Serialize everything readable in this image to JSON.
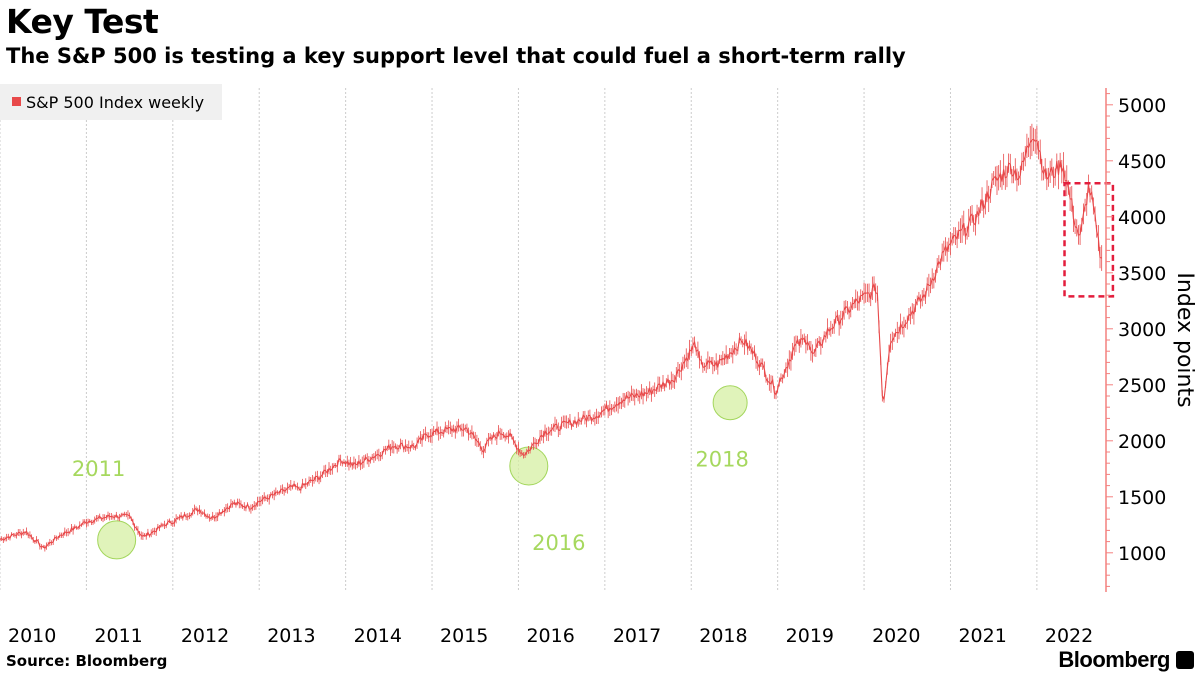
{
  "header": {
    "title": "Key Test",
    "subtitle": "The S&P 500 is testing a key support level that could fuel a short-term rally"
  },
  "footer": {
    "source": "Source: Bloomberg",
    "brand": "Bloomberg"
  },
  "colors": {
    "series": "#e8494a",
    "axis": "#f4807f",
    "highlight_fill": "#d6efa3",
    "highlight_stroke": "#a3d65c",
    "annotation_text": "#a6d85e",
    "box": "#e31d3c",
    "grid": "#cccccc"
  },
  "icons": [
    "bloomberg-logo-icon"
  ],
  "chart_data": {
    "type": "line",
    "title": "Key Test",
    "subtitle": "The S&P 500 is testing a key support level that could fuel a short-term rally",
    "ylabel": "Index points",
    "xlabel": "",
    "x_range": [
      2010.0,
      2022.8
    ],
    "ylim": [
      650,
      5150
    ],
    "yticks": [
      1000,
      1500,
      2000,
      2500,
      3000,
      3500,
      4000,
      4500,
      5000
    ],
    "ytick_labels": [
      "1000",
      "1500",
      "2000",
      "2500",
      "3000",
      "3500",
      "4000",
      "4500",
      "5000"
    ],
    "xticks": [
      2010,
      2011,
      2012,
      2013,
      2014,
      2015,
      2016,
      2017,
      2018,
      2019,
      2020,
      2021,
      2022
    ],
    "xtick_labels": [
      "2010",
      "2011",
      "2012",
      "2013",
      "2014",
      "2015",
      "2016",
      "2017",
      "2018",
      "2019",
      "2020",
      "2021",
      "2022"
    ],
    "grid": true,
    "legend_position": "top-left",
    "series": [
      {
        "name": "S&P 500 Index weekly",
        "x": [
          2010.0,
          2010.3,
          2010.45,
          2010.5,
          2010.7,
          2010.9,
          2011.0,
          2011.3,
          2011.5,
          2011.65,
          2011.8,
          2011.9,
          2012.0,
          2012.3,
          2012.45,
          2012.7,
          2012.9,
          2013.0,
          2013.4,
          2013.45,
          2013.7,
          2013.95,
          2014.1,
          2014.4,
          2014.55,
          2014.8,
          2014.95,
          2015.2,
          2015.4,
          2015.6,
          2015.65,
          2015.8,
          2015.9,
          2016.05,
          2016.1,
          2016.3,
          2016.6,
          2016.9,
          2017.2,
          2017.5,
          2017.8,
          2018.05,
          2018.1,
          2018.3,
          2018.6,
          2018.75,
          2018.98,
          2019.2,
          2019.35,
          2019.4,
          2019.6,
          2019.9,
          2020.1,
          2020.15,
          2020.22,
          2020.3,
          2020.5,
          2020.7,
          2020.9,
          2021.0,
          2021.3,
          2021.5,
          2021.7,
          2021.8,
          2021.95,
          2022.0,
          2022.1,
          2022.2,
          2022.3,
          2022.45,
          2022.5,
          2022.6,
          2022.65,
          2022.7,
          2022.75
        ],
        "values": [
          1120,
          1190,
          1080,
          1040,
          1160,
          1230,
          1280,
          1330,
          1320,
          1140,
          1200,
          1250,
          1280,
          1390,
          1310,
          1440,
          1410,
          1460,
          1590,
          1570,
          1680,
          1830,
          1780,
          1890,
          1960,
          1950,
          2060,
          2100,
          2110,
          1920,
          1990,
          2080,
          2040,
          1880,
          1900,
          2080,
          2160,
          2230,
          2370,
          2430,
          2560,
          2870,
          2680,
          2680,
          2900,
          2750,
          2450,
          2840,
          2920,
          2750,
          3000,
          3230,
          3330,
          3380,
          2300,
          2900,
          3100,
          3300,
          3640,
          3750,
          4000,
          4300,
          4450,
          4360,
          4770,
          4700,
          4350,
          4400,
          4480,
          3930,
          3800,
          4280,
          4100,
          3800,
          3600
        ]
      }
    ],
    "annotations": [
      {
        "label": "2011",
        "x": 2011.35,
        "y": 1115
      },
      {
        "label": "2016",
        "x": 2016.12,
        "y": 1775
      },
      {
        "label": "2018",
        "x": 2018.45,
        "y": 2340
      }
    ],
    "highlight_box": {
      "x_range": [
        2022.32,
        2022.88
      ],
      "y_range": [
        3290,
        4300
      ]
    }
  }
}
